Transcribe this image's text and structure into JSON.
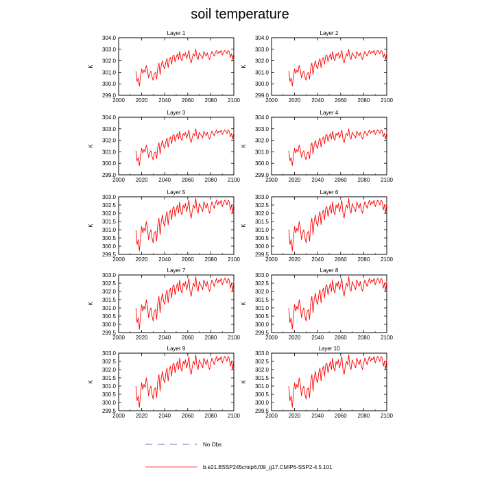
{
  "figure_title": "soil temperature",
  "colors": {
    "model_line": "#ff0000",
    "obs_line": "#3c3c96",
    "axis": "#000000"
  },
  "legend": {
    "obs_label": "No Obs",
    "model_label": "b.e21.BSSP245cmip6.f09_g17.CMIP6-SSP2-4.5.101"
  },
  "chart_data": {
    "type": "line",
    "xlabel": "",
    "ylabel": "K",
    "xlim": [
      2000,
      2100
    ],
    "xticks": [
      2000,
      2020,
      2040,
      2060,
      2080,
      2100
    ],
    "x_start": 2015,
    "x_step": 1,
    "grid": false,
    "panels": [
      {
        "title": "Layer 1",
        "ylim": [
          299.0,
          304.0
        ],
        "yticks": [
          299.0,
          300.0,
          301.0,
          302.0,
          303.0,
          304.0
        ],
        "ytick_format": 1,
        "series": "shallow"
      },
      {
        "title": "Layer 2",
        "ylim": [
          299.0,
          304.0
        ],
        "yticks": [
          299.0,
          300.0,
          301.0,
          302.0,
          303.0,
          304.0
        ],
        "ytick_format": 1,
        "series": "shallow"
      },
      {
        "title": "Layer 3",
        "ylim": [
          299.0,
          304.0
        ],
        "yticks": [
          299.0,
          300.0,
          301.0,
          302.0,
          303.0,
          304.0
        ],
        "ytick_format": 1,
        "series": "shallow"
      },
      {
        "title": "Layer 4",
        "ylim": [
          299.0,
          304.0
        ],
        "yticks": [
          299.0,
          300.0,
          301.0,
          302.0,
          303.0,
          304.0
        ],
        "ytick_format": 1,
        "series": "shallow"
      },
      {
        "title": "Layer 5",
        "ylim": [
          299.5,
          303.0
        ],
        "yticks": [
          299.5,
          300.0,
          300.5,
          301.0,
          301.5,
          302.0,
          302.5,
          303.0
        ],
        "ytick_format": 1,
        "series": "deep"
      },
      {
        "title": "Layer 6",
        "ylim": [
          299.5,
          303.0
        ],
        "yticks": [
          299.5,
          300.0,
          300.5,
          301.0,
          301.5,
          302.0,
          302.5,
          303.0
        ],
        "ytick_format": 1,
        "series": "deep"
      },
      {
        "title": "Layer 7",
        "ylim": [
          299.5,
          303.0
        ],
        "yticks": [
          299.5,
          300.0,
          300.5,
          301.0,
          301.5,
          302.0,
          302.5,
          303.0
        ],
        "ytick_format": 1,
        "series": "deep"
      },
      {
        "title": "Layer 8",
        "ylim": [
          299.5,
          303.0
        ],
        "yticks": [
          299.5,
          300.0,
          300.5,
          301.0,
          301.5,
          302.0,
          302.5,
          303.0
        ],
        "ytick_format": 1,
        "series": "deep"
      },
      {
        "title": "Layer 9",
        "ylim": [
          299.5,
          303.0
        ],
        "yticks": [
          299.5,
          300.0,
          300.5,
          301.0,
          301.5,
          302.0,
          302.5,
          303.0
        ],
        "ytick_format": 1,
        "series": "deep"
      },
      {
        "title": "Layer 10",
        "ylim": [
          299.5,
          303.0
        ],
        "yticks": [
          299.5,
          300.0,
          300.5,
          301.0,
          301.5,
          302.0,
          302.5,
          303.0
        ],
        "ytick_format": 1,
        "series": "deep"
      }
    ],
    "series": {
      "shallow": [
        301.1,
        300.2,
        300.5,
        299.8,
        300.6,
        301.3,
        300.9,
        301.2,
        301.0,
        301.6,
        301.2,
        300.5,
        300.9,
        301.1,
        300.6,
        300.3,
        300.9,
        301.0,
        300.4,
        301.4,
        301.8,
        300.8,
        301.6,
        302.0,
        301.5,
        301.3,
        301.9,
        302.2,
        301.4,
        302.1,
        302.3,
        301.7,
        302.4,
        302.5,
        301.9,
        302.3,
        302.6,
        302.1,
        302.8,
        302.2,
        302.0,
        302.6,
        302.4,
        302.7,
        302.2,
        302.5,
        302.9,
        302.1,
        301.8,
        302.3,
        302.6,
        302.4,
        303.0,
        302.3,
        302.1,
        302.7,
        302.5,
        302.4,
        302.2,
        302.8,
        302.6,
        302.4,
        302.7,
        302.3,
        302.1,
        302.5,
        302.8,
        302.6,
        302.4,
        302.7,
        302.9,
        302.6,
        302.8,
        302.7,
        302.9,
        302.5,
        302.7,
        302.9,
        302.8,
        302.6,
        302.9,
        302.8,
        302.3,
        302.6,
        302.1,
        302.7
      ],
      "deep": [
        301.0,
        300.1,
        300.4,
        299.7,
        300.5,
        301.2,
        300.8,
        301.1,
        300.9,
        301.5,
        301.1,
        300.4,
        300.8,
        301.0,
        300.5,
        300.2,
        300.8,
        300.9,
        300.3,
        301.3,
        301.7,
        300.7,
        301.5,
        301.9,
        301.4,
        301.2,
        301.8,
        302.1,
        301.3,
        302.0,
        302.2,
        301.6,
        302.3,
        302.4,
        301.8,
        302.2,
        302.5,
        302.0,
        302.7,
        302.1,
        301.9,
        302.5,
        302.3,
        302.6,
        302.1,
        302.4,
        302.8,
        302.0,
        301.7,
        302.2,
        302.5,
        302.3,
        302.9,
        302.2,
        302.0,
        302.6,
        302.4,
        302.3,
        302.1,
        302.7,
        302.5,
        302.3,
        302.6,
        302.2,
        302.0,
        302.4,
        302.7,
        302.5,
        302.3,
        302.6,
        302.8,
        302.5,
        302.7,
        302.6,
        302.8,
        302.4,
        302.6,
        302.8,
        302.7,
        302.5,
        302.8,
        302.7,
        302.2,
        302.5,
        302.0,
        302.6
      ]
    }
  }
}
